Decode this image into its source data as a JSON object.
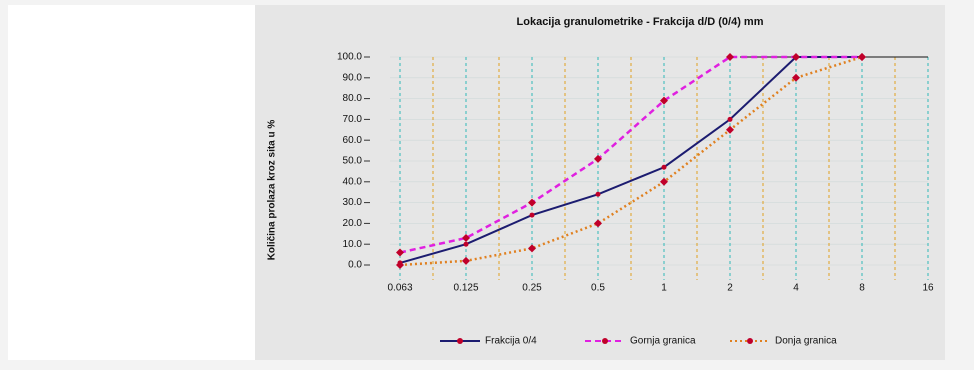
{
  "chart_data": {
    "type": "line",
    "title": "Lokacija granulometrike - Frakcija d/D (0/4) mm",
    "y_label": "Količina prolaza kroz sita u %",
    "categories": [
      "0.063",
      "0.125",
      "0.25",
      "0.5",
      "1",
      "2",
      "4",
      "8",
      "16"
    ],
    "series": [
      {
        "name": "Frakcija 0/4",
        "color": "#1c1c70",
        "style": "solid",
        "values": [
          1,
          10,
          24,
          34,
          47,
          70,
          100,
          100,
          null
        ]
      },
      {
        "name": "Gornja granica",
        "color": "#e020e0",
        "style": "dashed",
        "values": [
          6,
          13,
          30,
          51,
          79,
          100,
          100,
          100,
          null
        ]
      },
      {
        "name": "Donja granica",
        "color": "#e08020",
        "style": "dotted",
        "values": [
          0,
          2,
          8,
          20,
          40,
          65,
          90,
          100,
          null
        ]
      }
    ],
    "marker_color": "#c0002a",
    "ylim": [
      0,
      100
    ],
    "yticks": [
      {
        "value": 0,
        "label": "0.0"
      },
      {
        "value": 10,
        "label": "10.0"
      },
      {
        "value": 20,
        "label": "20.0"
      },
      {
        "value": 30,
        "label": "30.0"
      },
      {
        "value": 40,
        "label": "40.0"
      },
      {
        "value": 50,
        "label": "50.0"
      },
      {
        "value": 60,
        "label": "60.0"
      },
      {
        "value": 70,
        "label": "70.0"
      },
      {
        "value": 80,
        "label": "80.0"
      },
      {
        "value": 90,
        "label": "90.0"
      },
      {
        "value": 100,
        "label": "100.0"
      }
    ],
    "grid": true
  }
}
